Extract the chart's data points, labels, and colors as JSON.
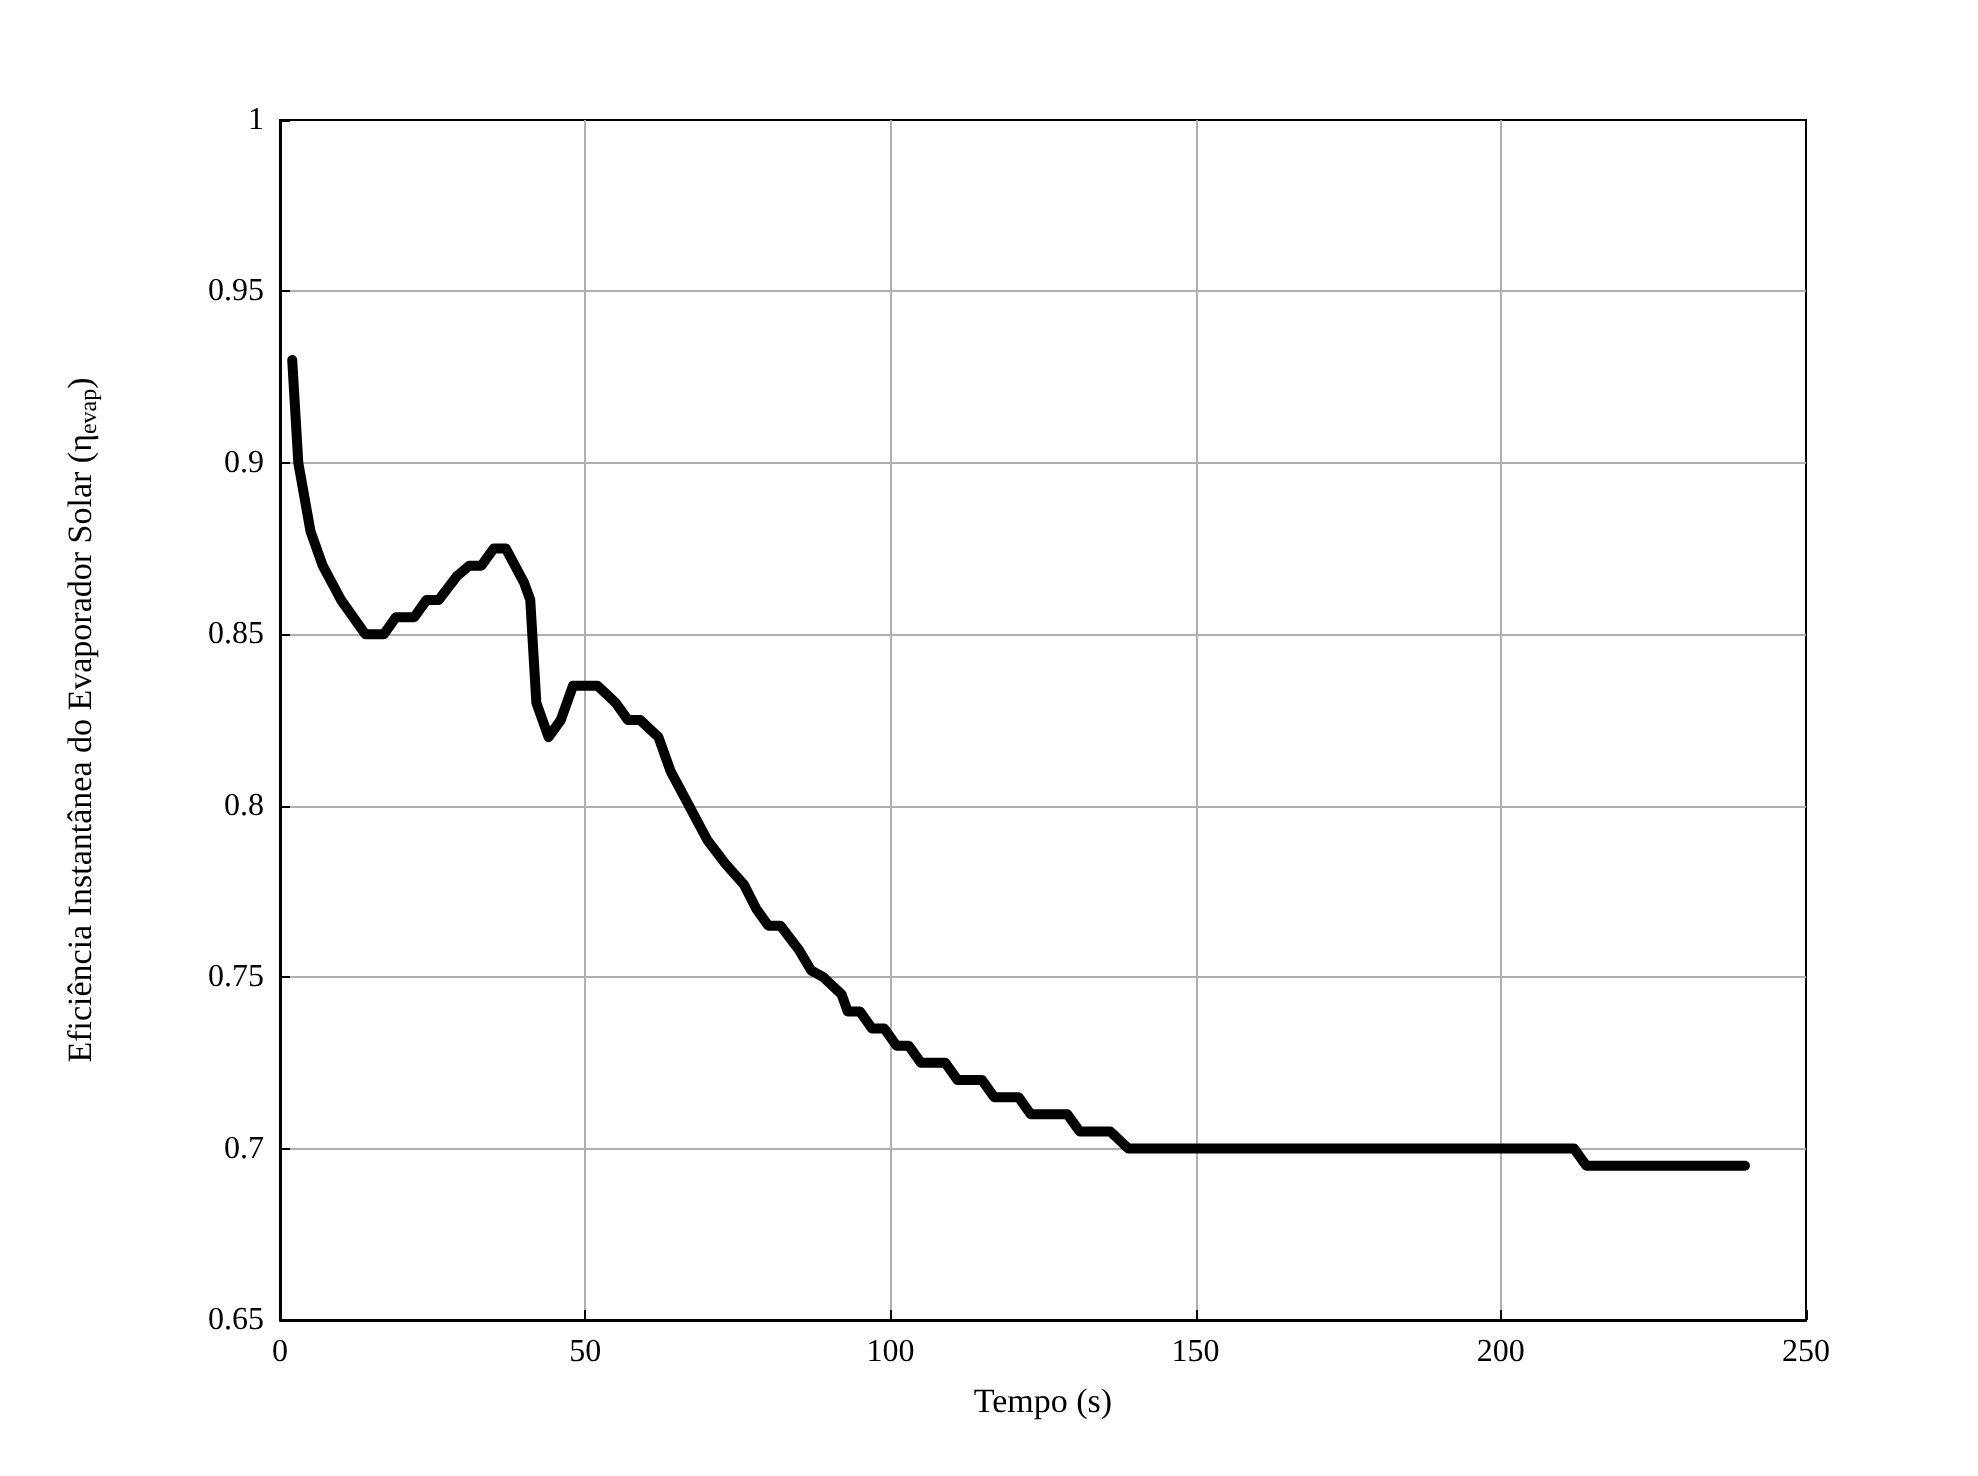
{
  "chart_data": {
    "type": "line",
    "xlabel": "Tempo (s)",
    "ylabel": "Eficiência Instantânea do Evaporador Solar (η$_{evap}$)",
    "xlim": [
      0,
      250
    ],
    "xticks": [
      0,
      50,
      100,
      150,
      200,
      250
    ],
    "ylim": [
      0.65,
      1
    ],
    "yticks": [
      0.65,
      0.7,
      0.75,
      0.8,
      0.85,
      0.9,
      0.95,
      1
    ],
    "grid": true,
    "marker": "none",
    "line_style": "solid",
    "series": [
      {
        "color": "#000000",
        "x": [
          2,
          3,
          5,
          7,
          10,
          14,
          17,
          19,
          22,
          24,
          26,
          29,
          31,
          33,
          35,
          37,
          40,
          41,
          42,
          44,
          46,
          48,
          52,
          55,
          57,
          59,
          62,
          64,
          67,
          70,
          73,
          76,
          78,
          80,
          82,
          85,
          87,
          89,
          92,
          93,
          95,
          97,
          99,
          101,
          103,
          105,
          109,
          111,
          115,
          117,
          121,
          123,
          129,
          131,
          136,
          139,
          212,
          214,
          240
        ],
        "values": [
          0.93,
          0.9,
          0.88,
          0.87,
          0.86,
          0.85,
          0.85,
          0.855,
          0.855,
          0.86,
          0.86,
          0.867,
          0.87,
          0.87,
          0.875,
          0.875,
          0.865,
          0.86,
          0.83,
          0.82,
          0.825,
          0.835,
          0.835,
          0.83,
          0.825,
          0.825,
          0.82,
          0.81,
          0.8,
          0.79,
          0.783,
          0.777,
          0.77,
          0.765,
          0.765,
          0.758,
          0.752,
          0.75,
          0.745,
          0.74,
          0.74,
          0.735,
          0.735,
          0.73,
          0.73,
          0.725,
          0.725,
          0.72,
          0.72,
          0.715,
          0.715,
          0.71,
          0.71,
          0.705,
          0.705,
          0.7,
          0.7,
          0.695,
          0.695
        ]
      }
    ]
  }
}
